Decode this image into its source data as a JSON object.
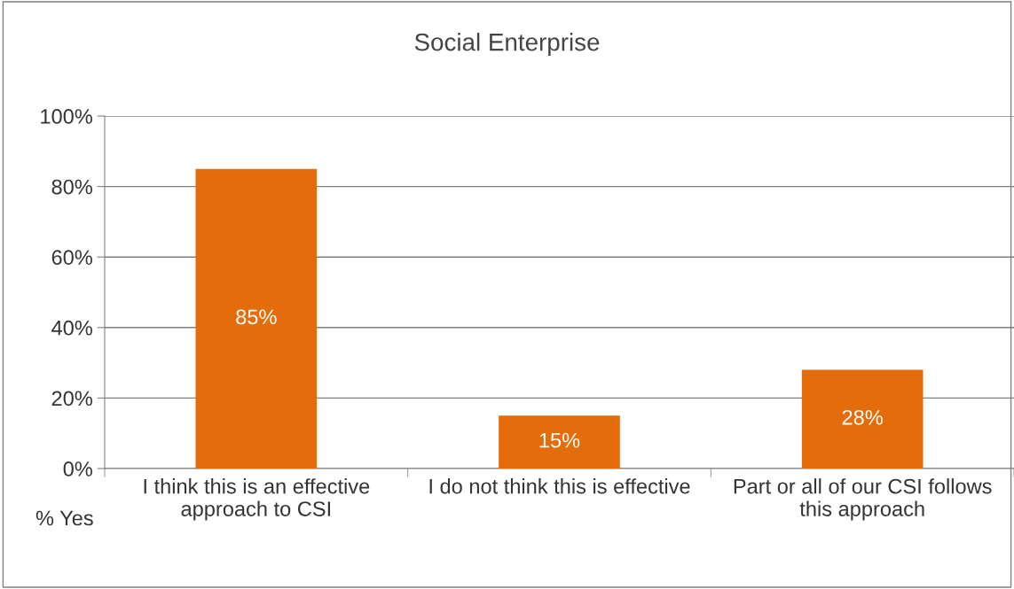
{
  "chart_data": {
    "type": "bar",
    "title": "Social Enterprise",
    "categories": [
      "I think this is an effective\napproach to CSI",
      "I do not think this is effective",
      "Part or all of our CSI follows\nthis approach"
    ],
    "values": [
      85,
      15,
      28
    ],
    "value_labels": [
      "85%",
      "15%",
      "28%"
    ],
    "color": "#e46c0a",
    "ylim": [
      0,
      100
    ],
    "yticks": [
      {
        "value": 0,
        "label": "0%"
      },
      {
        "value": 20,
        "label": "20%"
      },
      {
        "value": 40,
        "label": "40%"
      },
      {
        "value": 60,
        "label": "60%"
      },
      {
        "value": 80,
        "label": "80%"
      },
      {
        "value": 100,
        "label": "100%"
      }
    ],
    "grid": "y",
    "legend": false,
    "annotations": [
      "% Yes"
    ]
  }
}
